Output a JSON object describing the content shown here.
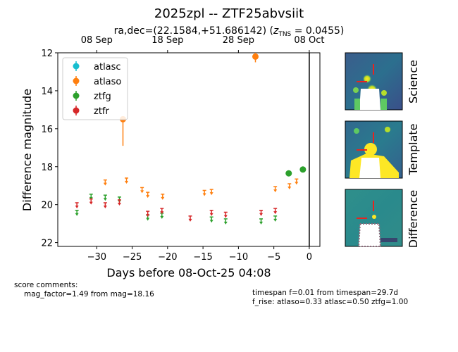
{
  "title": "2025zpl -- ZTF25abvsiit",
  "subtitle_prefix": "ra,dec=(22.1584,+51.686142) (",
  "subtitle_z": "z",
  "subtitle_sub": "TNS",
  "subtitle_suffix": " = 0.0455)",
  "chart_data": {
    "type": "scatter",
    "xlabel": "Days before 08-Oct-25 04:08",
    "ylabel": "Difference magnitude",
    "xlim": [
      -35.5,
      1.5
    ],
    "ylim": [
      22.2,
      12
    ],
    "y_inverted": true,
    "x_ticks": [
      {
        "value": -30,
        "label": "−30"
      },
      {
        "value": -25,
        "label": "−25"
      },
      {
        "value": -20,
        "label": "−20"
      },
      {
        "value": -15,
        "label": "−15"
      },
      {
        "value": -10,
        "label": "−10"
      },
      {
        "value": -5,
        "label": "−5"
      },
      {
        "value": 0,
        "label": "0"
      }
    ],
    "y_ticks": [
      {
        "value": 12,
        "label": "12"
      },
      {
        "value": 14,
        "label": "14"
      },
      {
        "value": 16,
        "label": "16"
      },
      {
        "value": 18,
        "label": "18"
      },
      {
        "value": 20,
        "label": "20"
      },
      {
        "value": 22,
        "label": "22"
      }
    ],
    "top_ticks": [
      {
        "value": -30,
        "label": "08 Sep"
      },
      {
        "value": -20,
        "label": "18 Sep"
      },
      {
        "value": -10,
        "label": "28 Sep"
      },
      {
        "value": 0,
        "label": "08 Oct"
      }
    ],
    "vline_x": 0,
    "legend_position": "upper-left",
    "series": [
      {
        "name": "atlasc",
        "color": "#17becf",
        "detections": [],
        "upper_limits": []
      },
      {
        "name": "atlaso",
        "color": "#ff7f0e",
        "detections": [
          {
            "x": -26.3,
            "y": 15.5,
            "yerr_low": 1.4,
            "yerr_high": 0.1
          },
          {
            "x": -7.6,
            "y": 12.2,
            "yerr_low": 0.3,
            "yerr_high": 0.2
          }
        ],
        "upper_limits": [
          {
            "x": -28.8,
            "y": 18.7
          },
          {
            "x": -25.8,
            "y": 18.6
          },
          {
            "x": -23.6,
            "y": 19.1
          },
          {
            "x": -22.8,
            "y": 19.35
          },
          {
            "x": -20.7,
            "y": 19.45
          },
          {
            "x": -14.8,
            "y": 19.25
          },
          {
            "x": -13.8,
            "y": 19.2
          },
          {
            "x": -4.8,
            "y": 19.05
          },
          {
            "x": -2.8,
            "y": 18.9
          },
          {
            "x": -1.8,
            "y": 18.65
          }
        ]
      },
      {
        "name": "ztfg",
        "color": "#2ca02c",
        "detections": [
          {
            "x": -2.9,
            "y": 18.35
          },
          {
            "x": -0.9,
            "y": 18.15
          }
        ],
        "upper_limits": [
          {
            "x": -32.8,
            "y": 20.3
          },
          {
            "x": -30.8,
            "y": 19.45
          },
          {
            "x": -28.8,
            "y": 19.5
          },
          {
            "x": -26.8,
            "y": 19.6
          },
          {
            "x": -22.8,
            "y": 20.55
          },
          {
            "x": -20.8,
            "y": 20.45
          },
          {
            "x": -13.8,
            "y": 20.65
          },
          {
            "x": -11.8,
            "y": 20.75
          },
          {
            "x": -6.8,
            "y": 20.75
          },
          {
            "x": -4.8,
            "y": 20.6
          }
        ]
      },
      {
        "name": "ztfr",
        "color": "#d62728",
        "detections": [],
        "upper_limits": [
          {
            "x": -32.8,
            "y": 19.9
          },
          {
            "x": -30.8,
            "y": 19.7
          },
          {
            "x": -28.8,
            "y": 19.9
          },
          {
            "x": -26.8,
            "y": 19.75
          },
          {
            "x": -22.8,
            "y": 20.35
          },
          {
            "x": -20.8,
            "y": 20.2
          },
          {
            "x": -16.8,
            "y": 20.6
          },
          {
            "x": -13.8,
            "y": 20.3
          },
          {
            "x": -11.8,
            "y": 20.4
          },
          {
            "x": -6.8,
            "y": 20.3
          },
          {
            "x": -4.8,
            "y": 20.2
          }
        ]
      }
    ]
  },
  "stamps": [
    {
      "label": "Science"
    },
    {
      "label": "Template"
    },
    {
      "label": "Difference"
    }
  ],
  "footer": {
    "score_title": "score comments:",
    "score_line": "mag_factor=1.49 from mag=18.16",
    "timespan_line": "timespan f=0.01 from timespan=29.7d",
    "frise_line": "f_rise: atlaso=0.33 atlasc=0.50 ztfg=1.00"
  }
}
